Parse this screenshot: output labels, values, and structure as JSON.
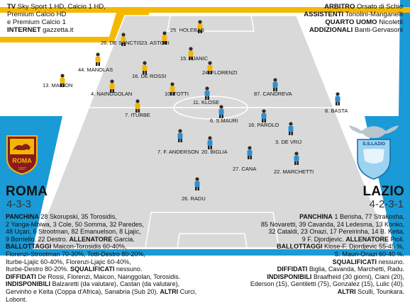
{
  "tv": {
    "label": "TV",
    "channels_line1": "Sky Sport 1 HD, Calcio 1 HD,",
    "channels_line2": "Premium Calcio HD",
    "channels_line3": "e Premium Calcio 1",
    "internet_label": "INTERNET",
    "internet_value": "gazzetta.it"
  },
  "officials": [
    {
      "label": "ARBITRO",
      "value": "Orsato di Schio"
    },
    {
      "label": "ASSISTENTI",
      "value": "Tonolini-Manganelli"
    },
    {
      "label": "QUARTO UOMO",
      "value": "Nicoletti"
    },
    {
      "label": "ADDIZIONALI",
      "value": "Banti-Gervasoni"
    }
  ],
  "colors": {
    "roma_stripe": "#f5b800",
    "lazio_stripe": "#1a9ad6",
    "pitch": "#d9d9d9",
    "pitch_lines": "#ffffff",
    "roma_shirt": "#f2b705",
    "lazio_shirt": "#2d8fd4"
  },
  "roma": {
    "name": "ROMA",
    "formation": "4-3-3",
    "players": [
      {
        "label": "25. HOLEBAS"
      },
      {
        "label": "26. DE SANCTIS"
      },
      {
        "label": "23. ASTORI"
      },
      {
        "label": "15. PJANIC"
      },
      {
        "label": "44. MANOLAS"
      },
      {
        "label": "16. DE ROSSI"
      },
      {
        "label": "24. FLORENZI"
      },
      {
        "label": "13. MAICON"
      },
      {
        "label": "4. NAINGGOLAN"
      },
      {
        "label": "10. TOTTI"
      },
      {
        "label": "7. ITURBE"
      }
    ],
    "lines": [
      [
        {
          "b": "PANCHINA"
        },
        {
          "t": " 28 Skorupski, 35 Torosidis,"
        }
      ],
      [
        {
          "t": "2 Yanga-Mbiwa, 3 Cole, 50 Somma, 32 Paredes,"
        }
      ],
      [
        {
          "t": "48 Uçan, 6 Strootman, 82 Emanuelson, 8 Ljajic,"
        }
      ],
      [
        {
          "t": "9 Borriello, 22 Destro. "
        },
        {
          "b": "ALLENATORE"
        },
        {
          "t": " Garcia."
        }
      ],
      [
        {
          "b": "BALLOTTAGGI"
        },
        {
          "t": " Maicon-Torosidis 60-40%,"
        }
      ],
      [
        {
          "t": "Florenzi-Strootman 70-30%, Totti-Destro 80-20%,"
        }
      ],
      [
        {
          "t": "Iturbe-Ljajic 60-40%, Florenzi-Ljajic 60-40%,"
        }
      ],
      [
        {
          "t": "Iturbe-Destro 80-20%. "
        },
        {
          "b": "SQUALIFICATI"
        },
        {
          "t": " nessuno."
        }
      ],
      [
        {
          "b": "DIFFIDATI"
        },
        {
          "t": " De Rossi, Florenzi, Maicon, Nainggolan, Torosidis."
        }
      ],
      [
        {
          "b": "INDISPONIBILI"
        },
        {
          "t": " Balzaretti (da valutare), Castan (da valutare),"
        }
      ],
      [
        {
          "t": "Gervinho e Keita (Coppa d'Africa), Sanabria (Sub 20). "
        },
        {
          "b": "ALTRI"
        },
        {
          "t": " Curci, Lobont."
        }
      ]
    ]
  },
  "lazio": {
    "name": "LAZIO",
    "formation": "4-2-3-1",
    "badge_text": "S.S.LAZIO",
    "players": [
      {
        "label": "11. KLOSE"
      },
      {
        "label": "87. CANDREVA"
      },
      {
        "label": "8. BASTA"
      },
      {
        "label": "6. S.MAURI"
      },
      {
        "label": "16. PAROLO"
      },
      {
        "label": "3. DE VRIJ"
      },
      {
        "label": "7. F. ANDERSON"
      },
      {
        "label": "20. BIGLIA"
      },
      {
        "label": "27. CANA"
      },
      {
        "label": "22. MARCHETTI"
      },
      {
        "label": "26. RADU"
      }
    ],
    "lines": [
      [
        {
          "b": "PANCHINA"
        },
        {
          "t": " 1 Berisha, 77 Strakosha,"
        }
      ],
      [
        {
          "t": "85 Novaretti, 39 Cavanda, 24 Ledesma, 13 Konko,"
        }
      ],
      [
        {
          "t": "32 Cataldi, 23 Onazi, 17 Pereirinha, 14 B. Keita,"
        }
      ],
      [
        {
          "t": "9 F. Djordjevic. "
        },
        {
          "b": "ALLENATORE"
        },
        {
          "t": " Pioli."
        }
      ],
      [
        {
          "b": "BALLOTTAGGI"
        },
        {
          "t": " Klose-F. Djordjevic 55-45 %,"
        }
      ],
      [
        {
          "t": "S. Mauri-Onazi 60-40 %."
        }
      ],
      [
        {
          "b": "SQUALIFICATI"
        },
        {
          "t": " nessuno."
        }
      ],
      [
        {
          "b": "DIFFIDATI"
        },
        {
          "t": " Biglia, Cavanda, Marchetti, Radu."
        }
      ],
      [
        {
          "b": "INDISPONIBILI"
        },
        {
          "t": " Braafheid (30 giorni), Ciani (20),"
        }
      ],
      [
        {
          "t": "Ederson (15), Gentiletti (75), Gonzalez (15), Lulic (40)."
        }
      ],
      [
        {
          "b": "ALTRI"
        },
        {
          "t": " Sculli, Tounkara."
        }
      ]
    ]
  }
}
